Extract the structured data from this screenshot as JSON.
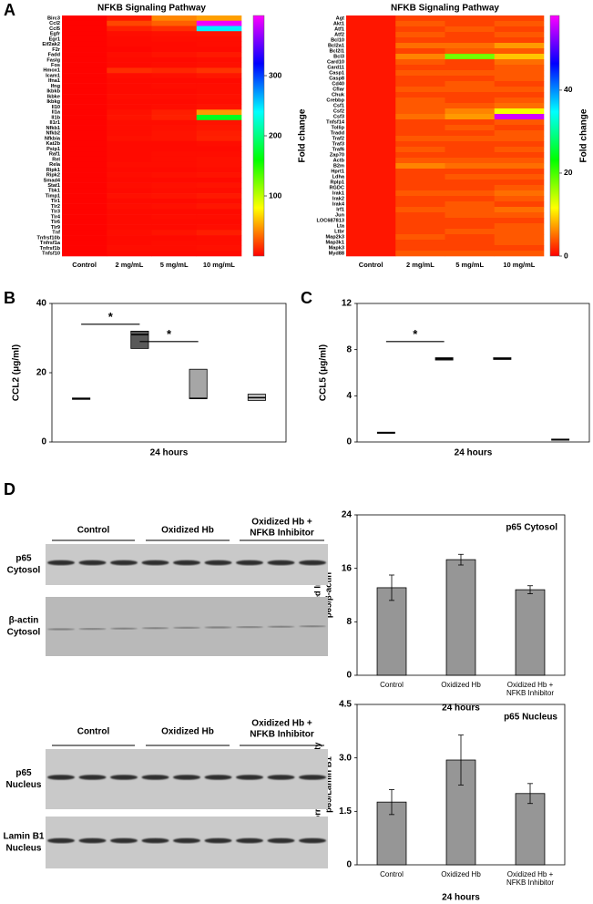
{
  "panel_labels": [
    "A",
    "B",
    "C",
    "D"
  ],
  "chart_data": [
    {
      "type": "heatmap",
      "title": "NFKB Signaling Pathway",
      "colorbar_label": "Fold change",
      "categories": [
        "Control",
        "2 mg/mL",
        "5 mg/mL",
        "10 mg/mL"
      ],
      "rows": [
        "Birc3",
        "Ccl2",
        "Ccl5",
        "Egfr",
        "Egr1",
        "Eif2ak2",
        "F2r",
        "Fadd",
        "Faslg",
        "Fos",
        "Hmox1",
        "Icam1",
        "Ifna1",
        "Ifng",
        "Ikbkb",
        "Ikbke",
        "Ikbkg",
        "Il10",
        "Il1a",
        "Il1b",
        "Il1r1",
        "Nfkb1",
        "Nfkb2",
        "Nfkbia",
        "Kat2b",
        "Psip1",
        "Raf1",
        "Rel",
        "Rela",
        "Ripk1",
        "Ripk2",
        "Smad4",
        "Stat1",
        "Tbk1",
        "Timp1",
        "Tlr1",
        "Tlr2",
        "Tlr3",
        "Tlr4",
        "Tlr6",
        "Tlr9",
        "Tnf",
        "Tnfrsf10b",
        "Tnfrsf1a",
        "Tnfrsf1b",
        "Tnfsf10"
      ],
      "values": [
        [
          1,
          8,
          42,
          50
        ],
        [
          1,
          22,
          30,
          395
        ],
        [
          1,
          10,
          14,
          245
        ],
        [
          1,
          4,
          5,
          6
        ],
        [
          1,
          3,
          4,
          4
        ],
        [
          1,
          3,
          3,
          4
        ],
        [
          1,
          2,
          3,
          3
        ],
        [
          1,
          4,
          6,
          8
        ],
        [
          1,
          3,
          3,
          4
        ],
        [
          1,
          3,
          4,
          5
        ],
        [
          1,
          14,
          12,
          16
        ],
        [
          1,
          4,
          5,
          7
        ],
        [
          1,
          3,
          3,
          3
        ],
        [
          1,
          3,
          4,
          4
        ],
        [
          1,
          3,
          3,
          4
        ],
        [
          1,
          4,
          4,
          5
        ],
        [
          1,
          3,
          3,
          4
        ],
        [
          1,
          3,
          4,
          6
        ],
        [
          1,
          5,
          9,
          48
        ],
        [
          1,
          6,
          10,
          170
        ],
        [
          1,
          4,
          4,
          6
        ],
        [
          1,
          4,
          5,
          7
        ],
        [
          1,
          4,
          6,
          9
        ],
        [
          1,
          5,
          6,
          10
        ],
        [
          1,
          3,
          3,
          4
        ],
        [
          1,
          3,
          3,
          3
        ],
        [
          1,
          3,
          4,
          4
        ],
        [
          1,
          3,
          4,
          5
        ],
        [
          1,
          4,
          4,
          5
        ],
        [
          1,
          3,
          3,
          4
        ],
        [
          1,
          4,
          5,
          6
        ],
        [
          1,
          3,
          3,
          3
        ],
        [
          1,
          4,
          5,
          6
        ],
        [
          1,
          3,
          4,
          4
        ],
        [
          1,
          5,
          6,
          8
        ],
        [
          1,
          3,
          3,
          4
        ],
        [
          1,
          4,
          5,
          7
        ],
        [
          1,
          3,
          3,
          3
        ],
        [
          1,
          3,
          4,
          4
        ],
        [
          1,
          3,
          3,
          3
        ],
        [
          1,
          3,
          3,
          4
        ],
        [
          1,
          4,
          6,
          9
        ],
        [
          1,
          3,
          3,
          4
        ],
        [
          1,
          3,
          4,
          4
        ],
        [
          1,
          4,
          4,
          5
        ],
        [
          1,
          3,
          3,
          3
        ]
      ],
      "colormap": "rainbow",
      "zlim": [
        0,
        400
      ],
      "zticks": [
        100,
        200,
        300
      ]
    },
    {
      "type": "heatmap",
      "title": "NFKB Signaling Pathway",
      "colorbar_label": "Fold change",
      "categories": [
        "Control",
        "2 mg/mL",
        "5 mg/mL",
        "10 mg/mL"
      ],
      "rows": [
        "Agt",
        "Akt1",
        "Atf1",
        "Atf2",
        "Bcl10",
        "Bcl2a1",
        "Bcl2l1",
        "Bcl3",
        "Card10",
        "Card11",
        "Casp1",
        "Casp8",
        "Cd40",
        "Cflar",
        "Chuk",
        "Crebbp",
        "Csf1",
        "Csf2",
        "Csf3",
        "Tnfsf14",
        "Tollip",
        "Tradd",
        "Traf2",
        "Traf3",
        "Traf6",
        "Zap70",
        "Actb",
        "B2m",
        "Hprt1",
        "Ldha",
        "Rplp1",
        "RGDC",
        "Irak1",
        "Irak2",
        "Irak4",
        "Irf1",
        "Jun",
        "LOC687813",
        "Lta",
        "Ltbr",
        "Map2k3",
        "Map3k1",
        "Mapk3",
        "Myd88"
      ],
      "values": [
        [
          1,
          3,
          3,
          3
        ],
        [
          1,
          4,
          3,
          4
        ],
        [
          1,
          3,
          4,
          3
        ],
        [
          1,
          4,
          3,
          4
        ],
        [
          1,
          3,
          3,
          3
        ],
        [
          1,
          5,
          5,
          7
        ],
        [
          1,
          3,
          4,
          4
        ],
        [
          1,
          6,
          18,
          9
        ],
        [
          1,
          4,
          3,
          5
        ],
        [
          1,
          3,
          3,
          4
        ],
        [
          1,
          4,
          4,
          4
        ],
        [
          1,
          3,
          3,
          4
        ],
        [
          1,
          3,
          4,
          3
        ],
        [
          1,
          4,
          4,
          4
        ],
        [
          1,
          3,
          3,
          3
        ],
        [
          1,
          4,
          3,
          4
        ],
        [
          1,
          4,
          4,
          5
        ],
        [
          1,
          4,
          6,
          12
        ],
        [
          1,
          5,
          7,
          56
        ],
        [
          1,
          3,
          3,
          4
        ],
        [
          1,
          3,
          4,
          3
        ],
        [
          1,
          3,
          3,
          4
        ],
        [
          1,
          4,
          4,
          4
        ],
        [
          1,
          3,
          3,
          3
        ],
        [
          1,
          4,
          3,
          4
        ],
        [
          1,
          3,
          3,
          3
        ],
        [
          1,
          4,
          4,
          4
        ],
        [
          1,
          6,
          5,
          5
        ],
        [
          1,
          3,
          3,
          3
        ],
        [
          1,
          3,
          4,
          4
        ],
        [
          1,
          3,
          3,
          3
        ],
        [
          1,
          3,
          3,
          4
        ],
        [
          1,
          4,
          4,
          5
        ],
        [
          1,
          3,
          3,
          4
        ],
        [
          1,
          3,
          4,
          3
        ],
        [
          1,
          4,
          4,
          5
        ],
        [
          1,
          3,
          4,
          4
        ],
        [
          1,
          3,
          3,
          3
        ],
        [
          1,
          3,
          3,
          4
        ],
        [
          1,
          3,
          4,
          4
        ],
        [
          1,
          4,
          3,
          4
        ],
        [
          1,
          3,
          3,
          4
        ],
        [
          1,
          3,
          3,
          3
        ],
        [
          1,
          4,
          4,
          4
        ]
      ],
      "colormap": "rainbow",
      "zlim": [
        0,
        58
      ],
      "zticks": [
        0,
        20,
        40
      ]
    },
    {
      "type": "box",
      "ylabel": "CCL2 (μg/ml)",
      "xlabel": "24 hours",
      "categories": [
        null,
        null,
        null,
        null
      ],
      "q1": [
        12.3,
        27,
        12.5,
        12
      ],
      "median": [
        12.5,
        31,
        12.6,
        12.8
      ],
      "q3": [
        12.7,
        32,
        21,
        13.8
      ],
      "colors": [
        "#ffffff",
        "#595959",
        "#a6a6a6",
        "#bfbfbf"
      ],
      "ylim": [
        0,
        40
      ],
      "yticks": [
        0,
        20,
        40
      ],
      "significance": [
        {
          "label": "*",
          "x": [
            0,
            1
          ],
          "y": 34
        },
        {
          "label": "*",
          "x": [
            1,
            2
          ],
          "y": 29
        }
      ]
    },
    {
      "type": "box",
      "ylabel": "CCL5 (μg/ml)",
      "xlabel": "24 hours",
      "categories": [
        null,
        null,
        null,
        null
      ],
      "q1": [
        0.75,
        7.1,
        7.15,
        0.15
      ],
      "median": [
        0.8,
        7.2,
        7.2,
        0.2
      ],
      "q3": [
        0.85,
        7.3,
        7.3,
        0.25
      ],
      "colors": [
        "#ffffff",
        "#595959",
        "#a6a6a6",
        "#bfbfbf"
      ],
      "ylim": [
        0,
        12
      ],
      "yticks": [
        0,
        4,
        8,
        12
      ],
      "significance": [
        {
          "label": "*",
          "x": [
            0,
            1
          ],
          "y": 8.7
        }
      ]
    },
    {
      "type": "bar",
      "title": "p65 Cytosol",
      "ylabel": [
        "Normalized Intensity",
        "p65/β-actin"
      ],
      "xlabel": "24 hours",
      "categories": [
        [
          "Control"
        ],
        [
          "Oxidized Hb"
        ],
        [
          "Oxidized Hb +",
          "NFKB Inhibitor"
        ]
      ],
      "values": [
        13.1,
        17.3,
        12.8
      ],
      "errors": [
        1.9,
        0.8,
        0.6
      ],
      "color": "#969696",
      "ylim": [
        0,
        24
      ],
      "yticks": [
        0,
        8,
        16,
        24
      ]
    },
    {
      "type": "bar",
      "title": "p65 Nucleus",
      "ylabel": [
        "Normalized Intensity",
        "p65/Lamin B1"
      ],
      "xlabel": "24 hours",
      "categories": [
        [
          "Control"
        ],
        [
          "Oxidized Hb"
        ],
        [
          "Oxidized Hb +",
          "NFKB Inhibitor"
        ]
      ],
      "values": [
        1.76,
        2.94,
        2.0
      ],
      "errors": [
        0.35,
        0.7,
        0.28
      ],
      "color": "#969696",
      "ylim": [
        0,
        4.5
      ],
      "yticks": [
        0,
        1.5,
        {
          "value": 3,
          "label": "3.0"
        },
        4.5
      ]
    }
  ],
  "blots": [
    {
      "groups": [
        [
          "Control"
        ],
        [
          "Oxidized Hb"
        ],
        [
          "Oxidized Hb +",
          "NFKB Inhibitor"
        ]
      ],
      "rows": [
        [
          "p65",
          "Cytosol"
        ],
        [
          "β-actin",
          "Cytosol"
        ]
      ]
    },
    {
      "groups": [
        [
          "Control"
        ],
        [
          "Oxidized Hb"
        ],
        [
          "Oxidized Hb +",
          "NFKB Inhibitor"
        ]
      ],
      "rows": [
        [
          "p65",
          "Nucleus"
        ],
        [
          "Lamin B1",
          "Nucleus"
        ]
      ]
    }
  ]
}
